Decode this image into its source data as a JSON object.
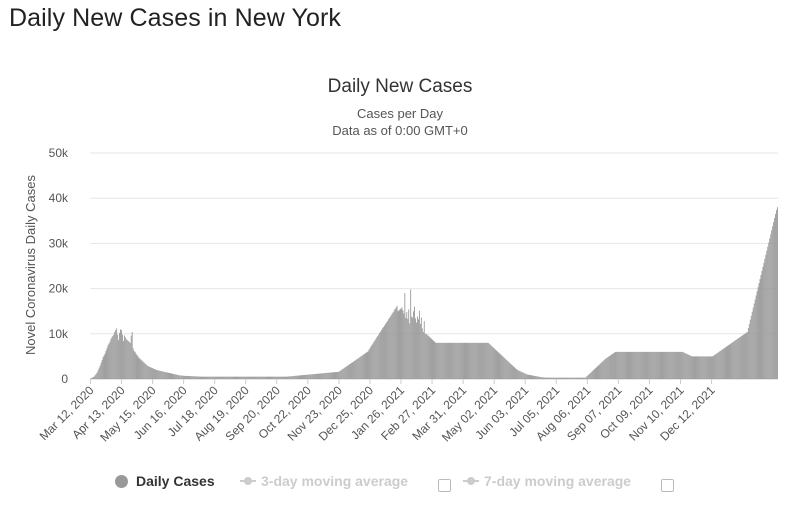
{
  "page_heading": "Daily New Cases in New York",
  "chart_data": {
    "type": "bar",
    "title": "Daily New Cases",
    "subtitle": [
      "Cases per Day",
      "Data as of 0:00 GMT+0"
    ],
    "xlabel": "",
    "ylabel": "Novel Coronavirus Daily Cases",
    "ylim": [
      0,
      50000
    ],
    "y_ticks": [
      0,
      10000,
      20000,
      30000,
      40000,
      50000
    ],
    "y_tick_labels": [
      "0",
      "10k",
      "20k",
      "30k",
      "40k",
      "50k"
    ],
    "x_tick_labels": [
      "Mar 12, 2020",
      "Apr 13, 2020",
      "May 15, 2020",
      "Jun 16, 2020",
      "Jul 18, 2020",
      "Aug 19, 2020",
      "Sep 20, 2020",
      "Oct 22, 2020",
      "Nov 23, 2020",
      "Dec 25, 2020",
      "Jan 26, 2021",
      "Feb 27, 2021",
      "Mar 31, 2021",
      "May 02, 2021",
      "Jun 03, 2021",
      "Jul 05, 2021",
      "Aug 06, 2021",
      "Sep 07, 2021",
      "Oct 09, 2021",
      "Nov 10, 2021",
      "Dec 12, 2021"
    ],
    "x_tick_every_days": 32,
    "grid": true,
    "legend_position": "bottom",
    "bar_color": "#999999",
    "series": [
      {
        "name": "Daily Cases",
        "x_start": "Mar 12, 2020",
        "x_step": "1 day",
        "values": [
          100,
          200,
          300,
          450,
          600,
          900,
          1200,
          1500,
          2000,
          2500,
          3000,
          3600,
          4200,
          4800,
          5200,
          5600,
          6200,
          6800,
          7400,
          7800,
          8200,
          8800,
          9200,
          9500,
          9800,
          10400,
          10800,
          11200,
          9800,
          8600,
          10200,
          11000,
          10800,
          9800,
          8400,
          9600,
          9200,
          8800,
          8600,
          8400,
          8200,
          8000,
          9600,
          10400,
          6800,
          6200,
          6000,
          5600,
          5300,
          5000,
          4700,
          4500,
          4300,
          4100,
          3900,
          3700,
          3500,
          3300,
          3100,
          2900,
          2800,
          2700,
          2600,
          2500,
          2400,
          2300,
          2200,
          2100,
          2000,
          1950,
          1900,
          1850,
          1800,
          1750,
          1700,
          1650,
          1600,
          1550,
          1500,
          1450,
          1400,
          1350,
          1300,
          1250,
          1200,
          1150,
          1100,
          1050,
          1000,
          950,
          900,
          850,
          800,
          780,
          760,
          740,
          720,
          700,
          690,
          680,
          670,
          660,
          650,
          640,
          630,
          620,
          610,
          600,
          590,
          580,
          570,
          560,
          550,
          540,
          530,
          520,
          520,
          520,
          520,
          520,
          520,
          520,
          520,
          520,
          520,
          520,
          520,
          520,
          520,
          520,
          520,
          520,
          520,
          520,
          520,
          520,
          520,
          520,
          520,
          520,
          520,
          520,
          520,
          520,
          520,
          520,
          520,
          520,
          520,
          520,
          520,
          520,
          520,
          520,
          520,
          520,
          520,
          520,
          520,
          520,
          520,
          520,
          520,
          520,
          520,
          520,
          520,
          520,
          520,
          520,
          520,
          520,
          520,
          520,
          520,
          520,
          520,
          520,
          520,
          520,
          520,
          520,
          520,
          520,
          520,
          520,
          520,
          520,
          520,
          520,
          520,
          520,
          520,
          520,
          520,
          520,
          520,
          520,
          520,
          520,
          520,
          520,
          520,
          540,
          560,
          580,
          600,
          620,
          640,
          660,
          680,
          700,
          720,
          740,
          760,
          780,
          800,
          820,
          840,
          860,
          880,
          900,
          920,
          940,
          960,
          980,
          1000,
          1020,
          1040,
          1060,
          1080,
          1100,
          1120,
          1140,
          1160,
          1180,
          1200,
          1220,
          1240,
          1260,
          1280,
          1300,
          1320,
          1340,
          1360,
          1380,
          1400,
          1420,
          1440,
          1460,
          1480,
          1500,
          1520,
          1540,
          1560,
          1580,
          1600,
          1750,
          1900,
          2050,
          2200,
          2350,
          2500,
          2650,
          2800,
          2950,
          3100,
          3250,
          3400,
          3550,
          3700,
          3850,
          4000,
          4150,
          4300,
          4450,
          4600,
          4750,
          4900,
          5050,
          5200,
          5350,
          5500,
          5650,
          5800,
          5950,
          6100,
          6500,
          6800,
          7200,
          7500,
          7800,
          8200,
          8500,
          8800,
          9200,
          9500,
          9800,
          10200,
          10500,
          10800,
          11200,
          11500,
          11800,
          12200,
          12500,
          12800,
          13200,
          13500,
          13800,
          14200,
          14500,
          14800,
          15200,
          15500,
          15800,
          16200,
          15000,
          15200,
          15400,
          15600,
          15800,
          15200,
          14500,
          19000,
          13500,
          14800,
          13300,
          15400,
          12300,
          19800,
          13800,
          13600,
          15000,
          16000,
          13400,
          12500,
          13800,
          13200,
          15100,
          12200,
          13600,
          11200,
          10400,
          12800,
          10000,
          10000,
          9800,
          9600,
          9400,
          9200,
          9000,
          8800,
          8600,
          8400,
          8200,
          8000,
          8000,
          8000,
          8000,
          8000,
          8000,
          8000,
          8000,
          8000,
          8000,
          8000,
          8000,
          8000,
          8000,
          8000,
          8000,
          8000,
          8000,
          8000,
          8000,
          8000,
          8000,
          8000,
          8000,
          8000,
          8000,
          8000,
          8000,
          8000,
          8000,
          8000,
          8000,
          8000,
          8000,
          8000,
          8000,
          8000,
          8000,
          8000,
          8000,
          8000,
          8000,
          8000,
          8000,
          8000,
          8000,
          8000,
          8000,
          8000,
          8000,
          8000,
          8000,
          8000,
          8000,
          8000,
          7800,
          7600,
          7400,
          7200,
          7000,
          6800,
          6600,
          6400,
          6200,
          6000,
          5800,
          5600,
          5400,
          5200,
          5000,
          4800,
          4600,
          4400,
          4200,
          4000,
          3800,
          3600,
          3400,
          3200,
          3000,
          2800,
          2600,
          2400,
          2200,
          2000,
          1900,
          1800,
          1700,
          1600,
          1500,
          1400,
          1300,
          1200,
          1100,
          1000,
          960,
          920,
          880,
          840,
          800,
          760,
          720,
          680,
          640,
          600,
          560,
          520,
          480,
          440,
          400,
          380,
          360,
          340,
          320,
          300,
          300,
          300,
          300,
          300,
          300,
          300,
          300,
          300,
          300,
          300,
          300,
          300,
          300,
          300,
          300,
          300,
          300,
          300,
          300,
          300,
          300,
          300,
          300,
          300,
          300,
          300,
          300,
          300,
          300,
          300,
          300,
          300,
          300,
          300,
          300,
          300,
          300,
          300,
          300,
          300,
          500,
          700,
          900,
          1100,
          1300,
          1500,
          1700,
          1900,
          2100,
          2300,
          2500,
          2700,
          2900,
          3100,
          3300,
          3500,
          3700,
          3900,
          4100,
          4300,
          4500,
          4650,
          4800,
          4950,
          5100,
          5250,
          5400,
          5550,
          5700,
          5850,
          6000,
          6000,
          6000,
          6000,
          6000,
          6000,
          6000,
          6000,
          6000,
          6000,
          6000,
          6000,
          6000,
          6000,
          6000,
          6000,
          6000,
          6000,
          6000,
          6000,
          6000,
          6000,
          6000,
          6000,
          6000,
          6000,
          6000,
          6000,
          6000,
          6000,
          6000,
          6000,
          6000,
          6000,
          6000,
          6000,
          6000,
          6000,
          6000,
          6000,
          6000,
          6000,
          6000,
          6000,
          6000,
          6000,
          6000,
          6000,
          6000,
          6000,
          6000,
          6000,
          6000,
          6000,
          6000,
          6000,
          6000,
          6000,
          6000,
          6000,
          6000,
          6000,
          6000,
          6000,
          6000,
          6000,
          6000,
          6000,
          6000,
          6000,
          5900,
          5800,
          5700,
          5600,
          5500,
          5400,
          5300,
          5200,
          5100,
          5000,
          5000,
          5000,
          5000,
          5000,
          5000,
          5000,
          5000,
          5000,
          5000,
          5000,
          5000,
          5000,
          5000,
          5000,
          5000,
          5000,
          5000,
          5000,
          5000,
          5000,
          5000,
          5150,
          5300,
          5450,
          5600,
          5750,
          5900,
          6050,
          6200,
          6350,
          6500,
          6650,
          6800,
          6950,
          7100,
          7250,
          7400,
          7550,
          7700,
          7850,
          8000,
          8150,
          8300,
          8450,
          8600,
          8750,
          8900,
          9050,
          9200,
          9350,
          9500,
          9650,
          9800,
          9950,
          10100,
          10250,
          10400,
          11300,
          12200,
          13100,
          14000,
          14900,
          15800,
          16700,
          17600,
          18500,
          19400,
          20300,
          21200,
          22100,
          23000,
          23900,
          24800,
          25700,
          26600,
          27500,
          28400,
          29300,
          30200,
          31100,
          32000,
          32900,
          33800,
          34700,
          35600,
          36500,
          37400,
          38000
        ]
      }
    ]
  },
  "legend": {
    "items": [
      {
        "label": "Daily Cases",
        "color": "#999999",
        "active": true
      },
      {
        "label": "3-day moving average",
        "color": "#cccccc",
        "active": false
      },
      {
        "label": "7-day moving average",
        "color": "#cccccc",
        "active": false
      }
    ]
  }
}
